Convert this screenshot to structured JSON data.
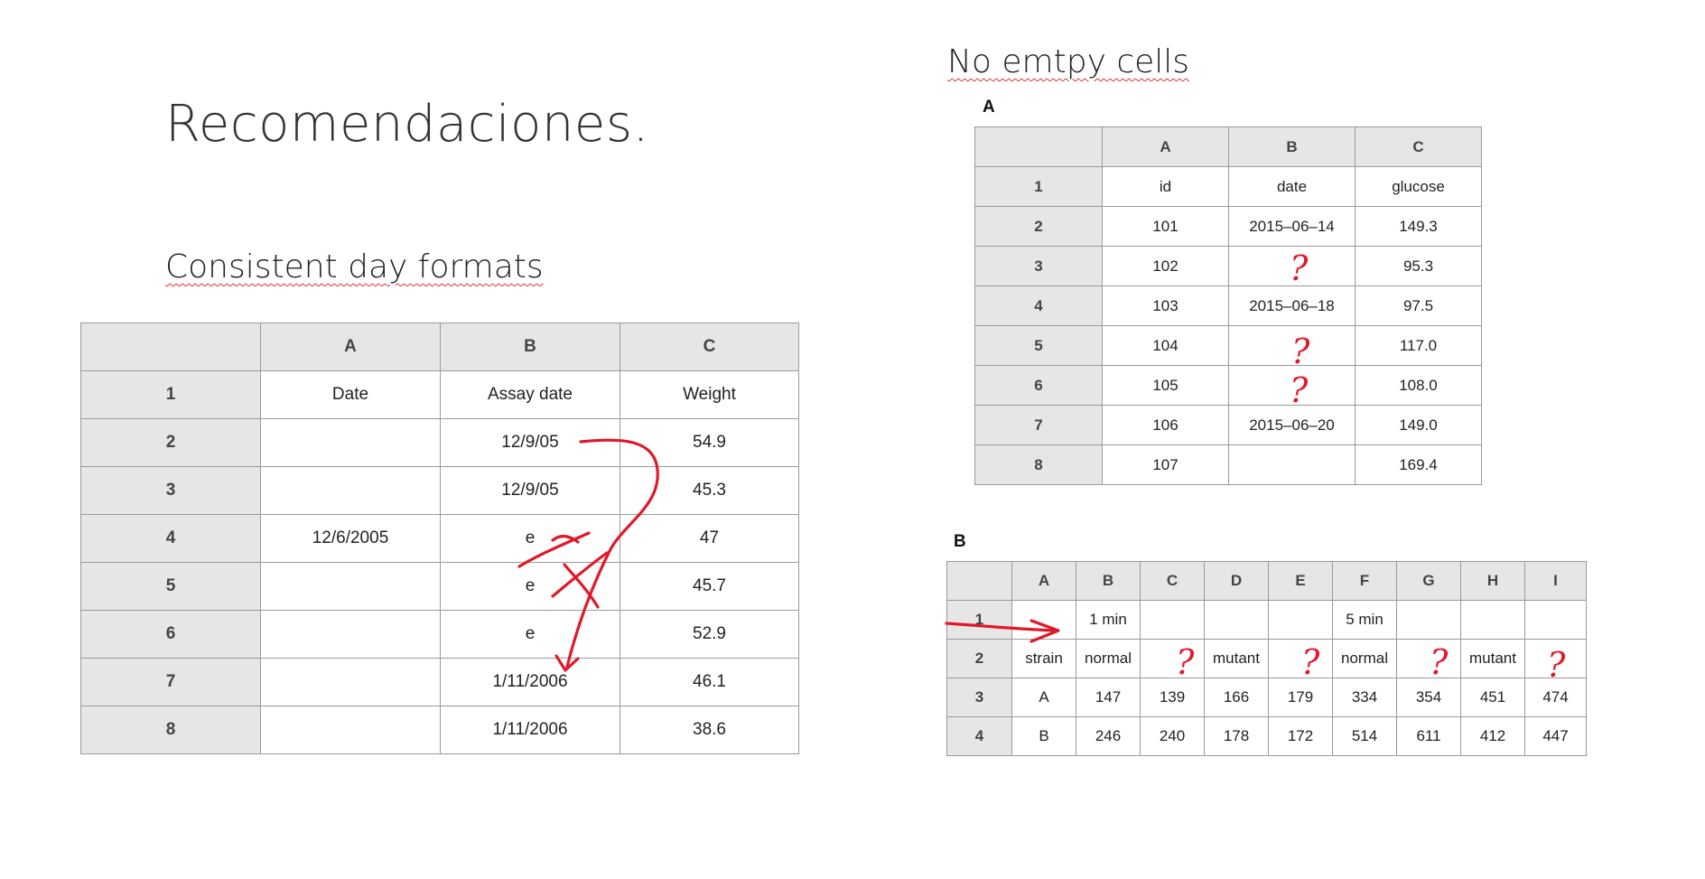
{
  "slide": {
    "title": "Recomendaciones.",
    "left_heading": "Consistent day formats",
    "right_heading": "No emtpy cells"
  },
  "left_table": {
    "columns": [
      "",
      "A",
      "B",
      "C"
    ],
    "rows": [
      [
        "1",
        "Date",
        "Assay date",
        "Weight"
      ],
      [
        "2",
        "",
        "12/9/05",
        "54.9"
      ],
      [
        "3",
        "",
        "12/9/05",
        "45.3"
      ],
      [
        "4",
        "12/6/2005",
        "e",
        "47"
      ],
      [
        "5",
        "",
        "e",
        "45.7"
      ],
      [
        "6",
        "",
        "e",
        "52.9"
      ],
      [
        "7",
        "",
        "1/11/2006",
        "46.1"
      ],
      [
        "8",
        "",
        "1/11/2006",
        "38.6"
      ]
    ]
  },
  "panel_a": {
    "label": "A",
    "columns": [
      "",
      "A",
      "B",
      "C"
    ],
    "rows": [
      [
        "1",
        "id",
        "date",
        "glucose"
      ],
      [
        "2",
        "101",
        "2015–06–14",
        "149.3"
      ],
      [
        "3",
        "102",
        "",
        "95.3"
      ],
      [
        "4",
        "103",
        "2015–06–18",
        "97.5"
      ],
      [
        "5",
        "104",
        "",
        "117.0"
      ],
      [
        "6",
        "105",
        "",
        "108.0"
      ],
      [
        "7",
        "106",
        "2015–06–20",
        "149.0"
      ],
      [
        "8",
        "107",
        "",
        "169.4"
      ]
    ]
  },
  "panel_b": {
    "label": "B",
    "columns": [
      "",
      "A",
      "B",
      "C",
      "D",
      "E",
      "F",
      "G",
      "H",
      "I"
    ],
    "rows": [
      [
        "1",
        "",
        "1 min",
        "",
        "",
        "",
        "5 min",
        "",
        "",
        ""
      ],
      [
        "2",
        "strain",
        "normal",
        "",
        "mutant",
        "",
        "normal",
        "",
        "mutant",
        ""
      ],
      [
        "3",
        "A",
        "147",
        "139",
        "166",
        "179",
        "334",
        "354",
        "451",
        "474"
      ],
      [
        "4",
        "B",
        "246",
        "240",
        "178",
        "172",
        "514",
        "611",
        "412",
        "447"
      ]
    ]
  },
  "annotations": {
    "question_mark": "?",
    "ink_color": "#e0192a"
  }
}
